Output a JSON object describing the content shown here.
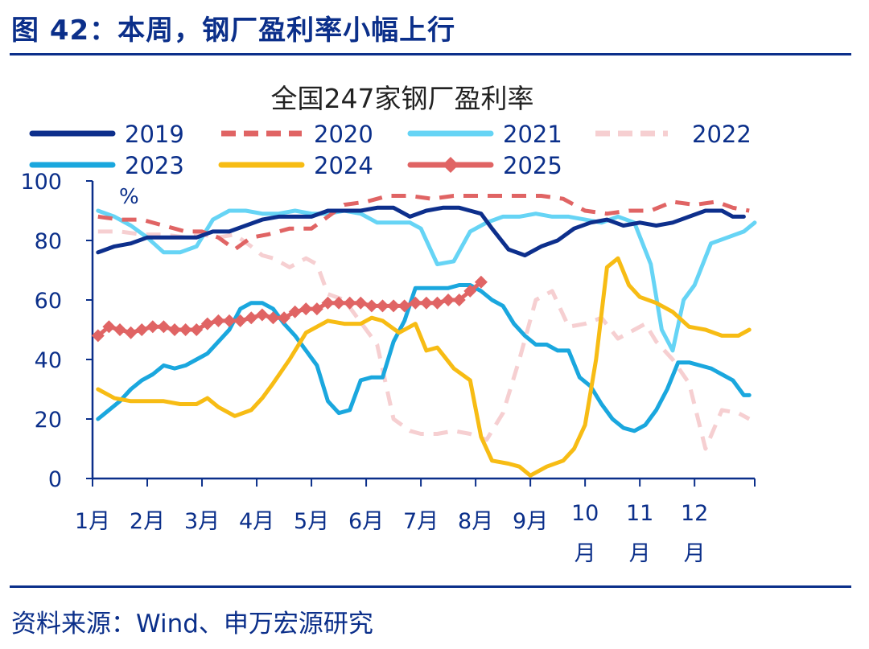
{
  "figure": {
    "title": "图 42：本周，钢厂盈利率小幅上行",
    "source": "资料来源：Wind、申万宏源研究"
  },
  "colors": {
    "2019": "#0d2f8c",
    "2020": "#e06464",
    "2021": "#66d4f5",
    "2022": "#f6cfd1",
    "2023": "#1aa7de",
    "2024": "#f7bc14",
    "2025": "#e06464",
    "frame": "#0b2f8a"
  },
  "chart_data": {
    "type": "line",
    "title": "全国247家钢厂盈利率",
    "ylabel": "%",
    "ylim": [
      0,
      100
    ],
    "yticks": [
      0,
      20,
      40,
      60,
      80,
      100
    ],
    "xlim": [
      1,
      13.1
    ],
    "xticks": [
      {
        "value": 1,
        "label": "1月"
      },
      {
        "value": 2,
        "label": "2月"
      },
      {
        "value": 3,
        "label": "3月"
      },
      {
        "value": 4,
        "label": "4月"
      },
      {
        "value": 5,
        "label": "5月"
      },
      {
        "value": 6,
        "label": "6月"
      },
      {
        "value": 7,
        "label": "7月"
      },
      {
        "value": 8,
        "label": "8月"
      },
      {
        "value": 9,
        "label": "9月"
      },
      {
        "value": 10,
        "label": "10月"
      },
      {
        "value": 11,
        "label": "11月"
      },
      {
        "value": 12,
        "label": "12月"
      }
    ],
    "legend_position": "top",
    "series": [
      {
        "name": "2019",
        "style": "solid",
        "x": [
          1.1,
          1.4,
          1.7,
          2.0,
          2.5,
          2.9,
          3.2,
          3.5,
          3.8,
          4.1,
          4.4,
          4.7,
          5.0,
          5.3,
          5.6,
          5.9,
          6.2,
          6.5,
          6.8,
          7.1,
          7.4,
          7.7,
          7.9,
          8.1,
          8.3,
          8.6,
          8.9,
          9.2,
          9.5,
          9.8,
          10.1,
          10.4,
          10.7,
          11.0,
          11.3,
          11.6,
          11.9,
          12.2,
          12.5,
          12.7,
          12.9
        ],
        "y": [
          76,
          78,
          79,
          81,
          81,
          81,
          83,
          83,
          85,
          87,
          88,
          88,
          88,
          90,
          90,
          90,
          91,
          91,
          88,
          90,
          91,
          91,
          90,
          89,
          84,
          77,
          75,
          78,
          80,
          84,
          86,
          87,
          85,
          86,
          85,
          86,
          88,
          90,
          90,
          88,
          88
        ]
      },
      {
        "name": "2020",
        "style": "dashed",
        "x": [
          1.1,
          1.5,
          1.9,
          2.3,
          2.7,
          3.0,
          3.3,
          3.6,
          3.9,
          4.2,
          4.6,
          5.0,
          5.3,
          5.6,
          6.0,
          6.4,
          6.8,
          7.2,
          7.6,
          8.0,
          8.4,
          8.8,
          9.2,
          9.6,
          10.0,
          10.4,
          10.8,
          11.2,
          11.6,
          12.0,
          12.4,
          12.7,
          13.0
        ],
        "y": [
          88,
          87,
          87,
          85,
          83,
          83,
          81,
          77,
          81,
          82,
          84,
          84,
          88,
          92,
          93,
          95,
          95,
          94,
          95,
          95,
          95,
          95,
          95,
          94,
          90,
          89,
          90,
          90,
          93,
          92,
          93,
          91,
          90
        ]
      },
      {
        "name": "2021",
        "style": "solid",
        "x": [
          1.1,
          1.4,
          1.7,
          2.0,
          2.3,
          2.6,
          2.9,
          3.2,
          3.5,
          3.8,
          4.1,
          4.4,
          4.7,
          5.0,
          5.3,
          5.6,
          5.9,
          6.2,
          6.5,
          6.8,
          7.0,
          7.3,
          7.6,
          7.9,
          8.2,
          8.5,
          8.8,
          9.1,
          9.4,
          9.7,
          10.0,
          10.3,
          10.6,
          10.9,
          11.2,
          11.4,
          11.6,
          11.8,
          12.0,
          12.3,
          12.6,
          12.9,
          13.1
        ],
        "y": [
          90,
          88,
          85,
          81,
          76,
          76,
          78,
          87,
          90,
          90,
          89,
          89,
          90,
          89,
          89,
          90,
          89,
          86,
          86,
          86,
          84,
          72,
          73,
          83,
          86,
          88,
          88,
          89,
          88,
          88,
          87,
          86,
          88,
          86,
          72,
          50,
          43,
          60,
          65,
          79,
          81,
          83,
          86
        ]
      },
      {
        "name": "2022",
        "style": "dashed",
        "x": [
          1.1,
          1.5,
          1.9,
          2.3,
          2.7,
          3.0,
          3.3,
          3.6,
          3.9,
          4.1,
          4.3,
          4.6,
          4.9,
          5.1,
          5.3,
          5.6,
          5.8,
          6.0,
          6.2,
          6.5,
          6.8,
          7.0,
          7.3,
          7.6,
          7.9,
          8.2,
          8.5,
          8.8,
          9.1,
          9.4,
          9.7,
          10.0,
          10.3,
          10.6,
          10.9,
          11.1,
          11.3,
          11.6,
          11.9,
          12.2,
          12.5,
          12.8,
          13.0
        ],
        "y": [
          83,
          83,
          82,
          82,
          81,
          82,
          81,
          82,
          78,
          75,
          74,
          71,
          74,
          72,
          62,
          60,
          55,
          50,
          45,
          20,
          16,
          15,
          15,
          16,
          15,
          13,
          22,
          40,
          60,
          63,
          51,
          52,
          54,
          47,
          50,
          52,
          46,
          40,
          32,
          10,
          23,
          22,
          20
        ]
      },
      {
        "name": "2023",
        "style": "solid",
        "x": [
          1.1,
          1.3,
          1.5,
          1.7,
          1.9,
          2.1,
          2.3,
          2.5,
          2.7,
          2.9,
          3.1,
          3.3,
          3.5,
          3.7,
          3.9,
          4.1,
          4.3,
          4.5,
          4.7,
          4.9,
          5.1,
          5.3,
          5.5,
          5.7,
          5.9,
          6.1,
          6.3,
          6.5,
          6.7,
          6.9,
          7.1,
          7.3,
          7.5,
          7.7,
          7.9,
          8.1,
          8.3,
          8.5,
          8.7,
          8.9,
          9.1,
          9.3,
          9.5,
          9.7,
          9.9,
          10.1,
          10.3,
          10.5,
          10.7,
          10.9,
          11.1,
          11.3,
          11.5,
          11.7,
          11.9,
          12.1,
          12.3,
          12.5,
          12.7,
          12.9,
          13.0
        ],
        "y": [
          20,
          23,
          26,
          30,
          33,
          35,
          38,
          37,
          38,
          40,
          42,
          46,
          50,
          57,
          59,
          59,
          57,
          52,
          48,
          43,
          38,
          26,
          22,
          23,
          33,
          34,
          34,
          46,
          53,
          64,
          64,
          64,
          64,
          65,
          65,
          63,
          60,
          58,
          52,
          48,
          45,
          45,
          43,
          43,
          34,
          31,
          25,
          20,
          17,
          16,
          18,
          23,
          30,
          39,
          39,
          38,
          37,
          35,
          33,
          28,
          28
        ]
      },
      {
        "name": "2024",
        "style": "solid",
        "x": [
          1.1,
          1.4,
          1.7,
          2.0,
          2.3,
          2.6,
          2.9,
          3.1,
          3.3,
          3.6,
          3.9,
          4.1,
          4.3,
          4.6,
          4.9,
          5.1,
          5.3,
          5.6,
          5.9,
          6.1,
          6.3,
          6.6,
          6.9,
          7.1,
          7.3,
          7.6,
          7.9,
          8.1,
          8.3,
          8.6,
          8.8,
          9.0,
          9.3,
          9.6,
          9.8,
          10.0,
          10.2,
          10.4,
          10.6,
          10.8,
          11.0,
          11.3,
          11.6,
          11.9,
          12.2,
          12.5,
          12.8,
          13.0
        ],
        "y": [
          30,
          27,
          26,
          26,
          26,
          25,
          25,
          27,
          24,
          21,
          23,
          27,
          32,
          40,
          49,
          51,
          53,
          52,
          52,
          54,
          53,
          49,
          52,
          43,
          44,
          37,
          33,
          14,
          6,
          5,
          4,
          1,
          4,
          6,
          10,
          18,
          40,
          71,
          74,
          65,
          61,
          59,
          56,
          51,
          50,
          48,
          48,
          50
        ]
      },
      {
        "name": "2025",
        "style": "solid-diamond",
        "x": [
          1.1,
          1.3,
          1.5,
          1.7,
          1.9,
          2.1,
          2.3,
          2.5,
          2.7,
          2.9,
          3.1,
          3.3,
          3.5,
          3.7,
          3.9,
          4.1,
          4.3,
          4.5,
          4.7,
          4.9,
          5.1,
          5.3,
          5.5,
          5.7,
          5.9,
          6.1,
          6.3,
          6.5,
          6.7,
          6.9,
          7.1,
          7.3,
          7.5,
          7.7,
          7.9,
          8.1
        ],
        "y": [
          48,
          51,
          50,
          49,
          50,
          51,
          51,
          50,
          50,
          50,
          52,
          53,
          53,
          53,
          54,
          55,
          54,
          54,
          56,
          57,
          57,
          59,
          59,
          59,
          59,
          58,
          58,
          58,
          58,
          59,
          59,
          59,
          60,
          60,
          63,
          66
        ]
      }
    ]
  }
}
